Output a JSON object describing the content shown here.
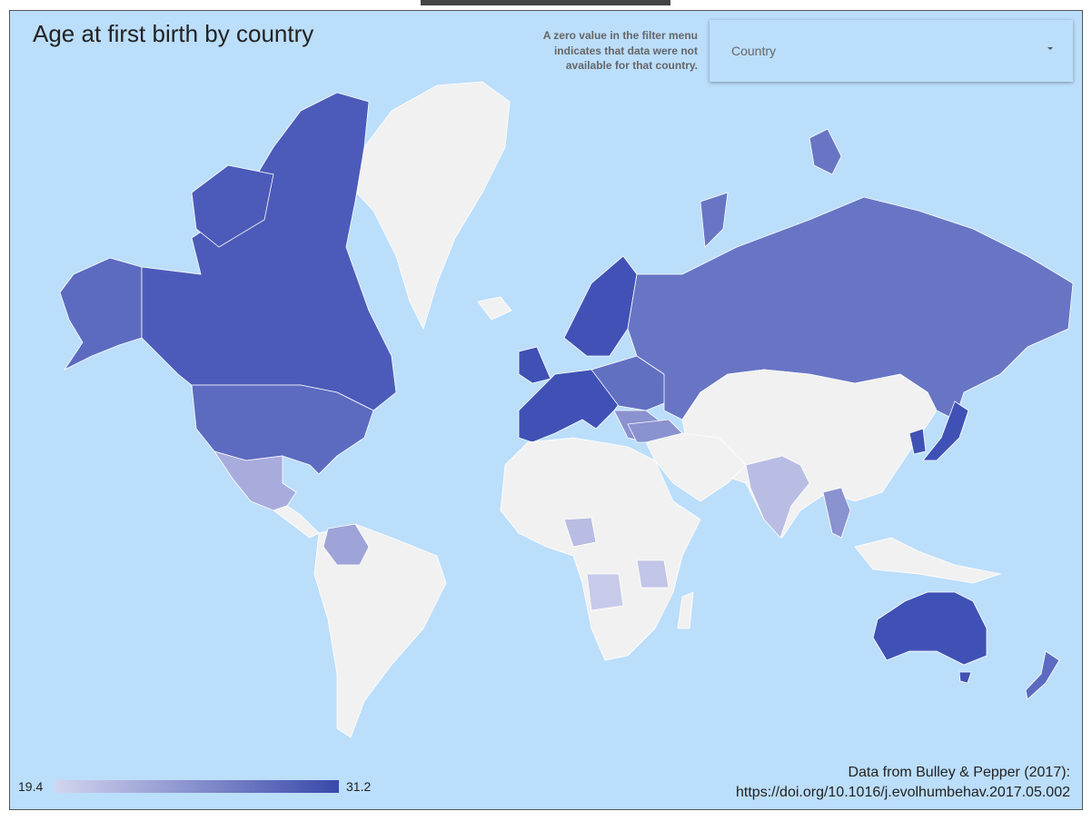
{
  "title": "Age at first birth by country",
  "note": [
    "A zero value in the filter menu",
    "indicates that data were not",
    "available for that country."
  ],
  "filter": {
    "label": "Country"
  },
  "legend": {
    "min": 19.4,
    "max": 31.2,
    "min_color": "#d3d5ee",
    "max_color": "#3949ab"
  },
  "source": [
    "Data from Bulley & Pepper (2017):",
    "https://doi.org/10.1016/j.evolhumbehav.2017.05.002"
  ]
}
